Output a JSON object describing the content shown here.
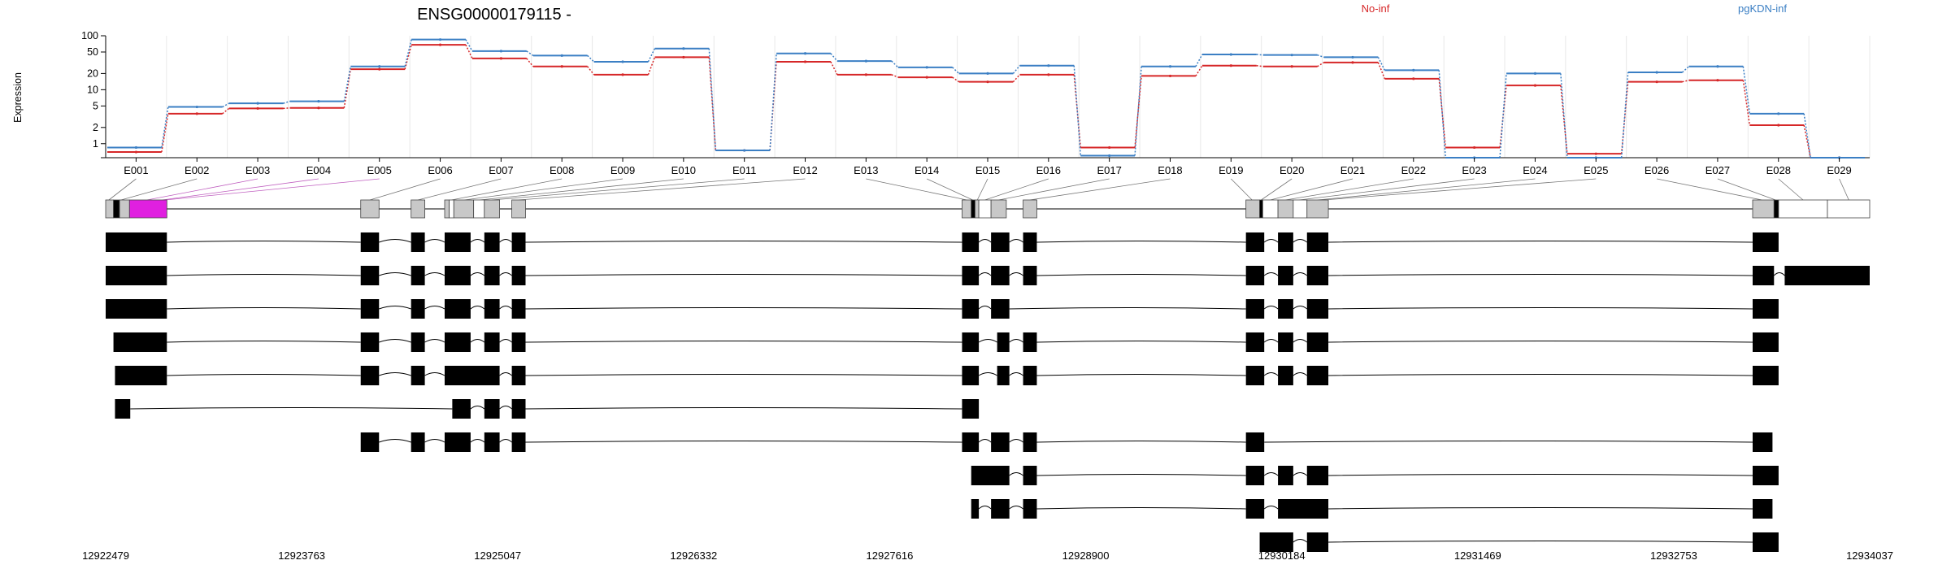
{
  "title": "ENSG00000179115 -",
  "ylabel": "Expression",
  "legend": [
    {
      "name": "No-inf",
      "color": "#d62728"
    },
    {
      "name": "pgKDN-inf",
      "color": "#3b7fc4"
    }
  ],
  "chart_data": {
    "type": "line",
    "y_scale": "log",
    "ylim": [
      0.55,
      100
    ],
    "yticks": [
      "100",
      "50",
      "20",
      "10",
      "5",
      "2",
      "1"
    ],
    "categories": [
      "E001",
      "E002",
      "E003",
      "E004",
      "E005",
      "E006",
      "E007",
      "E008",
      "E009",
      "E010",
      "E011",
      "E012",
      "E013",
      "E014",
      "E015",
      "E016",
      "E017",
      "E018",
      "E019",
      "E020",
      "E021",
      "E022",
      "E023",
      "E024",
      "E025",
      "E026",
      "E027",
      "E028",
      "E029"
    ],
    "series": [
      {
        "name": "No-inf",
        "color": "#d62728",
        "values": [
          0.7,
          3.6,
          4.5,
          4.6,
          24,
          68,
          38,
          27,
          19,
          40,
          0.75,
          33,
          19,
          17,
          14,
          19,
          0.85,
          18,
          28,
          27,
          32,
          16,
          0.85,
          12,
          0.65,
          14,
          15,
          2.2,
          0.55
        ]
      },
      {
        "name": "pgKDN-inf",
        "color": "#3b7fc4",
        "values": [
          0.85,
          4.8,
          5.6,
          6.1,
          27,
          85,
          52,
          43,
          33,
          58,
          0.75,
          47,
          34,
          26,
          20,
          28,
          0.6,
          27,
          45,
          44,
          40,
          23,
          0.55,
          20,
          0.55,
          21,
          27,
          3.6,
          0.55
        ]
      }
    ],
    "genomic_ticks": [
      "12922479",
      "12923763",
      "12925047",
      "12926332",
      "12927616",
      "12928900",
      "12930184",
      "12931469",
      "12932753",
      "12934037"
    ],
    "genomic_range": [
      12922479,
      12934037
    ]
  },
  "gene_model": {
    "exons": [
      {
        "start": 12922479,
        "end": 12922530,
        "fill": "#c8c8c8"
      },
      {
        "start": 12922530,
        "end": 12922570,
        "fill": "#000000"
      },
      {
        "start": 12922570,
        "end": 12922635,
        "fill": "#c8c8c8"
      },
      {
        "start": 12922635,
        "end": 12922880,
        "fill": "#e020e0"
      },
      {
        "start": 12924150,
        "end": 12924270,
        "fill": "#c8c8c8"
      },
      {
        "start": 12924480,
        "end": 12924570,
        "fill": "#c8c8c8"
      },
      {
        "start": 12924700,
        "end": 12924730,
        "fill": "#c8c8c8"
      },
      {
        "start": 12924730,
        "end": 12924760,
        "fill": "#ffffff"
      },
      {
        "start": 12924760,
        "end": 12924890,
        "fill": "#c8c8c8"
      },
      {
        "start": 12924890,
        "end": 12924960,
        "fill": "#ffffff"
      },
      {
        "start": 12924960,
        "end": 12925060,
        "fill": "#c8c8c8"
      },
      {
        "start": 12925140,
        "end": 12925230,
        "fill": "#c8c8c8"
      },
      {
        "start": 12928090,
        "end": 12928150,
        "fill": "#c8c8c8"
      },
      {
        "start": 12928150,
        "end": 12928175,
        "fill": "#000000"
      },
      {
        "start": 12928175,
        "end": 12928200,
        "fill": "#c8c8c8"
      },
      {
        "start": 12928200,
        "end": 12928280,
        "fill": "#ffffff"
      },
      {
        "start": 12928280,
        "end": 12928380,
        "fill": "#c8c8c8"
      },
      {
        "start": 12928490,
        "end": 12928580,
        "fill": "#c8c8c8"
      },
      {
        "start": 12929950,
        "end": 12930040,
        "fill": "#c8c8c8"
      },
      {
        "start": 12930040,
        "end": 12930060,
        "fill": "#000000"
      },
      {
        "start": 12930060,
        "end": 12930160,
        "fill": "#ffffff"
      },
      {
        "start": 12930160,
        "end": 12930260,
        "fill": "#c8c8c8"
      },
      {
        "start": 12930260,
        "end": 12930350,
        "fill": "#ffffff"
      },
      {
        "start": 12930350,
        "end": 12930490,
        "fill": "#c8c8c8"
      },
      {
        "start": 12933270,
        "end": 12933410,
        "fill": "#c8c8c8"
      },
      {
        "start": 12933410,
        "end": 12933440,
        "fill": "#000000"
      },
      {
        "start": 12933440,
        "end": 12933760,
        "fill": "#ffffff"
      },
      {
        "start": 12933760,
        "end": 12934037,
        "fill": "#ffffff"
      }
    ],
    "exon_label_targets": [
      12922500,
      12922580,
      12922750,
      12922850,
      12922870,
      12924210,
      12924525,
      12924745,
      12924830,
      12924930,
      12925010,
      12925185,
      12928120,
      12928160,
      12928190,
      12928240,
      12928330,
      12928535,
      12929990,
      12930050,
      12930110,
      12930210,
      12930300,
      12930420,
      12930460,
      12933330,
      12933420,
      12933600,
      12933900
    ],
    "transcripts": [
      [
        [
          12922479,
          12922880
        ],
        [
          12924150,
          12924270
        ],
        [
          12924480,
          12924570
        ],
        [
          12924700,
          12924870
        ],
        [
          12924960,
          12925060
        ],
        [
          12925140,
          12925230
        ],
        [
          12928090,
          12928200
        ],
        [
          12928280,
          12928400
        ],
        [
          12928490,
          12928580
        ],
        [
          12929950,
          12930070
        ],
        [
          12930160,
          12930260
        ],
        [
          12930350,
          12930490
        ],
        [
          12933270,
          12933440
        ]
      ],
      [
        [
          12922479,
          12922880
        ],
        [
          12924150,
          12924270
        ],
        [
          12924480,
          12924570
        ],
        [
          12924700,
          12924870
        ],
        [
          12924960,
          12925060
        ],
        [
          12925140,
          12925230
        ],
        [
          12928090,
          12928200
        ],
        [
          12928280,
          12928400
        ],
        [
          12928490,
          12928580
        ],
        [
          12929950,
          12930070
        ],
        [
          12930160,
          12930260
        ],
        [
          12930350,
          12930490
        ],
        [
          12933270,
          12933410
        ],
        [
          12933480,
          12934037
        ]
      ],
      [
        [
          12922479,
          12922880
        ],
        [
          12924150,
          12924270
        ],
        [
          12924480,
          12924570
        ],
        [
          12924700,
          12924870
        ],
        [
          12924960,
          12925060
        ],
        [
          12925140,
          12925230
        ],
        [
          12928090,
          12928200
        ],
        [
          12928280,
          12928400
        ],
        [
          12929950,
          12930070
        ],
        [
          12930160,
          12930260
        ],
        [
          12930350,
          12930490
        ],
        [
          12933270,
          12933440
        ]
      ],
      [
        [
          12922530,
          12922880
        ],
        [
          12924150,
          12924270
        ],
        [
          12924480,
          12924570
        ],
        [
          12924700,
          12924870
        ],
        [
          12924960,
          12925060
        ],
        [
          12925140,
          12925230
        ],
        [
          12928090,
          12928200
        ],
        [
          12928320,
          12928400
        ],
        [
          12928490,
          12928580
        ],
        [
          12929950,
          12930070
        ],
        [
          12930160,
          12930260
        ],
        [
          12930350,
          12930490
        ],
        [
          12933270,
          12933440
        ]
      ],
      [
        [
          12922540,
          12922880
        ],
        [
          12924150,
          12924270
        ],
        [
          12924480,
          12924570
        ],
        [
          12924700,
          12925060
        ],
        [
          12925140,
          12925230
        ],
        [
          12928090,
          12928200
        ],
        [
          12928320,
          12928400
        ],
        [
          12928490,
          12928580
        ],
        [
          12929950,
          12930070
        ],
        [
          12930160,
          12930260
        ],
        [
          12930350,
          12930490
        ],
        [
          12933270,
          12933440
        ]
      ],
      [
        [
          12922540,
          12922640
        ],
        [
          12924750,
          12924870
        ],
        [
          12924960,
          12925060
        ],
        [
          12925140,
          12925230
        ],
        [
          12928090,
          12928200
        ]
      ],
      [
        [
          12924150,
          12924270
        ],
        [
          12924480,
          12924570
        ],
        [
          12924700,
          12924870
        ],
        [
          12924960,
          12925060
        ],
        [
          12925140,
          12925230
        ],
        [
          12928090,
          12928200
        ],
        [
          12928280,
          12928400
        ],
        [
          12928490,
          12928580
        ],
        [
          12929950,
          12930070
        ],
        [
          12933270,
          12933400
        ]
      ],
      [
        [
          12928150,
          12928400
        ],
        [
          12928490,
          12928580
        ],
        [
          12929950,
          12930070
        ],
        [
          12930160,
          12930260
        ],
        [
          12930350,
          12930490
        ],
        [
          12933270,
          12933440
        ]
      ],
      [
        [
          12928150,
          12928200
        ],
        [
          12928280,
          12928400
        ],
        [
          12928490,
          12928580
        ],
        [
          12929950,
          12930070
        ],
        [
          12930160,
          12930490
        ],
        [
          12933270,
          12933400
        ]
      ],
      [
        [
          12930040,
          12930260
        ],
        [
          12930350,
          12930490
        ],
        [
          12933270,
          12933440
        ]
      ]
    ]
  }
}
